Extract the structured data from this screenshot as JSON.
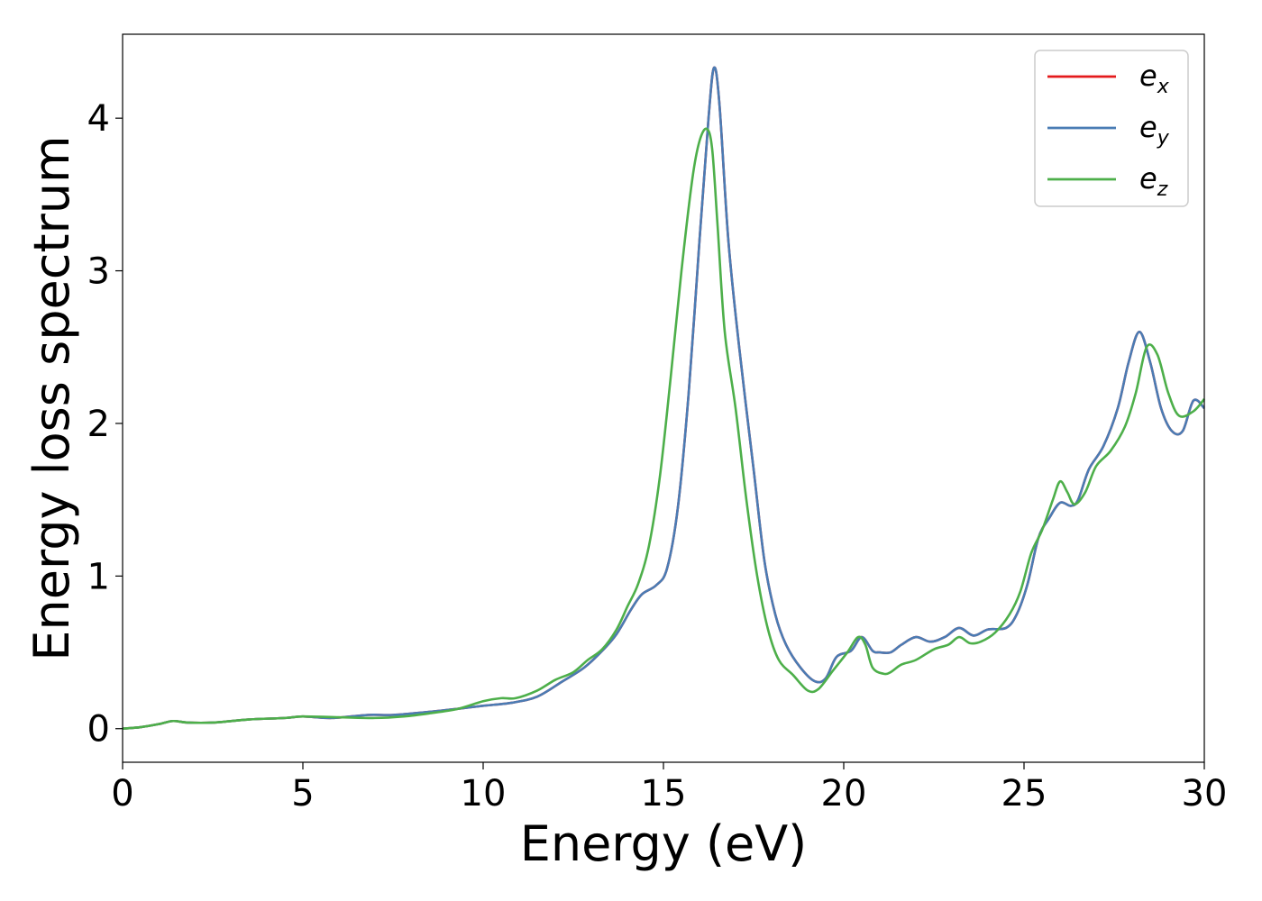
{
  "chart_data": {
    "type": "line",
    "title": "",
    "xlabel": "Energy (eV)",
    "ylabel": "Energy loss spectrum",
    "xlim": [
      0,
      30
    ],
    "ylim": [
      -0.22,
      4.55
    ],
    "xticks": [
      0,
      5,
      10,
      15,
      20,
      25,
      30
    ],
    "xtick_labels": [
      "0",
      "5",
      "10",
      "15",
      "20",
      "25",
      "30"
    ],
    "yticks": [
      0,
      1,
      2,
      3,
      4
    ],
    "ytick_labels": [
      "0",
      "1",
      "2",
      "3",
      "4"
    ],
    "grid": false,
    "legend_position": "top-right",
    "series": [
      {
        "name": "e_x",
        "legend_main": "e",
        "legend_sub": "x",
        "color": "#e41a1c",
        "points": [
          [
            0,
            0
          ],
          [
            0.5,
            0.01
          ],
          [
            1.0,
            0.03
          ],
          [
            1.4,
            0.05
          ],
          [
            1.8,
            0.04
          ],
          [
            2.5,
            0.04
          ],
          [
            3.5,
            0.06
          ],
          [
            4.5,
            0.07
          ],
          [
            5.0,
            0.08
          ],
          [
            5.8,
            0.07
          ],
          [
            6.8,
            0.09
          ],
          [
            7.5,
            0.09
          ],
          [
            8.5,
            0.11
          ],
          [
            9.3,
            0.13
          ],
          [
            10.0,
            0.15
          ],
          [
            10.8,
            0.17
          ],
          [
            11.5,
            0.21
          ],
          [
            12.2,
            0.31
          ],
          [
            12.8,
            0.4
          ],
          [
            13.3,
            0.51
          ],
          [
            13.7,
            0.62
          ],
          [
            14.1,
            0.78
          ],
          [
            14.4,
            0.88
          ],
          [
            14.8,
            0.94
          ],
          [
            15.1,
            1.05
          ],
          [
            15.4,
            1.45
          ],
          [
            15.7,
            2.2
          ],
          [
            16.0,
            3.2
          ],
          [
            16.25,
            4.0
          ],
          [
            16.4,
            4.33
          ],
          [
            16.55,
            4.1
          ],
          [
            16.8,
            3.2
          ],
          [
            17.1,
            2.5
          ],
          [
            17.5,
            1.7
          ],
          [
            17.8,
            1.1
          ],
          [
            18.1,
            0.75
          ],
          [
            18.4,
            0.55
          ],
          [
            18.8,
            0.4
          ],
          [
            19.2,
            0.31
          ],
          [
            19.5,
            0.33
          ],
          [
            19.8,
            0.47
          ],
          [
            20.2,
            0.51
          ],
          [
            20.5,
            0.6
          ],
          [
            20.8,
            0.51
          ],
          [
            21.0,
            0.5
          ],
          [
            21.3,
            0.5
          ],
          [
            21.6,
            0.55
          ],
          [
            22.0,
            0.6
          ],
          [
            22.4,
            0.57
          ],
          [
            22.8,
            0.6
          ],
          [
            23.2,
            0.66
          ],
          [
            23.6,
            0.61
          ],
          [
            24.0,
            0.65
          ],
          [
            24.5,
            0.66
          ],
          [
            24.8,
            0.75
          ],
          [
            25.1,
            0.95
          ],
          [
            25.4,
            1.25
          ],
          [
            25.7,
            1.38
          ],
          [
            26.0,
            1.48
          ],
          [
            26.3,
            1.46
          ],
          [
            26.5,
            1.5
          ],
          [
            26.8,
            1.7
          ],
          [
            27.2,
            1.85
          ],
          [
            27.6,
            2.1
          ],
          [
            27.9,
            2.4
          ],
          [
            28.2,
            2.6
          ],
          [
            28.5,
            2.4
          ],
          [
            28.8,
            2.1
          ],
          [
            29.1,
            1.95
          ],
          [
            29.4,
            1.95
          ],
          [
            29.7,
            2.15
          ],
          [
            30,
            2.1
          ]
        ]
      },
      {
        "name": "e_y",
        "legend_main": "e",
        "legend_sub": "y",
        "color": "#4a7cb4",
        "points": [
          [
            0,
            0
          ],
          [
            0.5,
            0.01
          ],
          [
            1.0,
            0.03
          ],
          [
            1.4,
            0.05
          ],
          [
            1.8,
            0.04
          ],
          [
            2.5,
            0.04
          ],
          [
            3.5,
            0.06
          ],
          [
            4.5,
            0.07
          ],
          [
            5.0,
            0.08
          ],
          [
            5.8,
            0.07
          ],
          [
            6.8,
            0.09
          ],
          [
            7.5,
            0.09
          ],
          [
            8.5,
            0.11
          ],
          [
            9.3,
            0.13
          ],
          [
            10.0,
            0.15
          ],
          [
            10.8,
            0.17
          ],
          [
            11.5,
            0.21
          ],
          [
            12.2,
            0.31
          ],
          [
            12.8,
            0.4
          ],
          [
            13.3,
            0.51
          ],
          [
            13.7,
            0.62
          ],
          [
            14.1,
            0.78
          ],
          [
            14.4,
            0.88
          ],
          [
            14.8,
            0.94
          ],
          [
            15.1,
            1.05
          ],
          [
            15.4,
            1.45
          ],
          [
            15.7,
            2.2
          ],
          [
            16.0,
            3.2
          ],
          [
            16.25,
            4.0
          ],
          [
            16.4,
            4.33
          ],
          [
            16.55,
            4.1
          ],
          [
            16.8,
            3.2
          ],
          [
            17.1,
            2.5
          ],
          [
            17.5,
            1.7
          ],
          [
            17.8,
            1.1
          ],
          [
            18.1,
            0.75
          ],
          [
            18.4,
            0.55
          ],
          [
            18.8,
            0.4
          ],
          [
            19.2,
            0.31
          ],
          [
            19.5,
            0.33
          ],
          [
            19.8,
            0.47
          ],
          [
            20.2,
            0.51
          ],
          [
            20.5,
            0.6
          ],
          [
            20.8,
            0.51
          ],
          [
            21.0,
            0.5
          ],
          [
            21.3,
            0.5
          ],
          [
            21.6,
            0.55
          ],
          [
            22.0,
            0.6
          ],
          [
            22.4,
            0.57
          ],
          [
            22.8,
            0.6
          ],
          [
            23.2,
            0.66
          ],
          [
            23.6,
            0.61
          ],
          [
            24.0,
            0.65
          ],
          [
            24.5,
            0.66
          ],
          [
            24.8,
            0.75
          ],
          [
            25.1,
            0.95
          ],
          [
            25.4,
            1.25
          ],
          [
            25.7,
            1.38
          ],
          [
            26.0,
            1.48
          ],
          [
            26.3,
            1.46
          ],
          [
            26.5,
            1.5
          ],
          [
            26.8,
            1.7
          ],
          [
            27.2,
            1.85
          ],
          [
            27.6,
            2.1
          ],
          [
            27.9,
            2.4
          ],
          [
            28.2,
            2.6
          ],
          [
            28.5,
            2.4
          ],
          [
            28.8,
            2.1
          ],
          [
            29.1,
            1.95
          ],
          [
            29.4,
            1.95
          ],
          [
            29.7,
            2.15
          ],
          [
            30,
            2.1
          ]
        ]
      },
      {
        "name": "e_z",
        "legend_main": "e",
        "legend_sub": "z",
        "color": "#4daf4a",
        "points": [
          [
            0,
            0
          ],
          [
            0.5,
            0.01
          ],
          [
            1.0,
            0.03
          ],
          [
            1.4,
            0.05
          ],
          [
            1.8,
            0.04
          ],
          [
            2.5,
            0.04
          ],
          [
            3.5,
            0.06
          ],
          [
            4.5,
            0.07
          ],
          [
            5.0,
            0.08
          ],
          [
            6.0,
            0.075
          ],
          [
            7.0,
            0.07
          ],
          [
            7.8,
            0.08
          ],
          [
            8.5,
            0.1
          ],
          [
            9.3,
            0.13
          ],
          [
            10.0,
            0.18
          ],
          [
            10.5,
            0.2
          ],
          [
            10.9,
            0.2
          ],
          [
            11.5,
            0.25
          ],
          [
            12.0,
            0.32
          ],
          [
            12.5,
            0.37
          ],
          [
            12.9,
            0.45
          ],
          [
            13.3,
            0.52
          ],
          [
            13.7,
            0.65
          ],
          [
            14.0,
            0.8
          ],
          [
            14.3,
            0.95
          ],
          [
            14.6,
            1.2
          ],
          [
            14.9,
            1.65
          ],
          [
            15.2,
            2.3
          ],
          [
            15.5,
            3.0
          ],
          [
            15.8,
            3.6
          ],
          [
            16.0,
            3.85
          ],
          [
            16.2,
            3.93
          ],
          [
            16.35,
            3.8
          ],
          [
            16.5,
            3.3
          ],
          [
            16.7,
            2.6
          ],
          [
            17.0,
            2.1
          ],
          [
            17.3,
            1.5
          ],
          [
            17.6,
            1.0
          ],
          [
            17.9,
            0.65
          ],
          [
            18.2,
            0.45
          ],
          [
            18.6,
            0.35
          ],
          [
            19.0,
            0.25
          ],
          [
            19.3,
            0.26
          ],
          [
            19.7,
            0.38
          ],
          [
            20.1,
            0.5
          ],
          [
            20.4,
            0.6
          ],
          [
            20.6,
            0.55
          ],
          [
            20.8,
            0.4
          ],
          [
            21.1,
            0.36
          ],
          [
            21.3,
            0.37
          ],
          [
            21.6,
            0.42
          ],
          [
            22.0,
            0.45
          ],
          [
            22.5,
            0.52
          ],
          [
            22.9,
            0.55
          ],
          [
            23.2,
            0.6
          ],
          [
            23.5,
            0.56
          ],
          [
            23.8,
            0.57
          ],
          [
            24.2,
            0.63
          ],
          [
            24.6,
            0.75
          ],
          [
            24.9,
            0.9
          ],
          [
            25.2,
            1.15
          ],
          [
            25.5,
            1.3
          ],
          [
            25.8,
            1.5
          ],
          [
            26.0,
            1.62
          ],
          [
            26.2,
            1.55
          ],
          [
            26.4,
            1.47
          ],
          [
            26.7,
            1.55
          ],
          [
            27.0,
            1.72
          ],
          [
            27.4,
            1.82
          ],
          [
            27.8,
            1.98
          ],
          [
            28.1,
            2.2
          ],
          [
            28.4,
            2.5
          ],
          [
            28.7,
            2.45
          ],
          [
            29.0,
            2.2
          ],
          [
            29.3,
            2.05
          ],
          [
            29.7,
            2.08
          ],
          [
            30,
            2.16
          ]
        ]
      }
    ]
  }
}
